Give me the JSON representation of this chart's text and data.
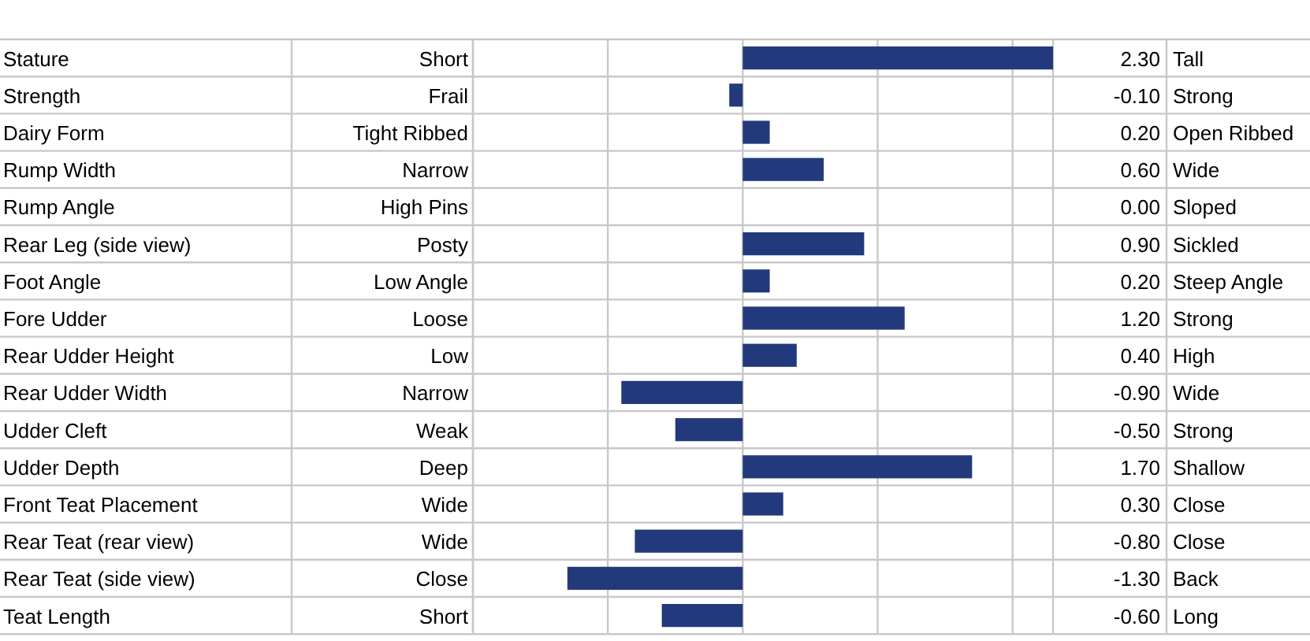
{
  "chart_data": {
    "type": "bar",
    "orientation": "horizontal",
    "categories": [
      "Stature",
      "Strength",
      "Dairy Form",
      "Rump Width",
      "Rump Angle",
      "Rear Leg (side view)",
      "Foot Angle",
      "Fore Udder",
      "Rear Udder Height",
      "Rear Udder Width",
      "Udder Cleft",
      "Udder Depth",
      "Front Teat Placement",
      "Rear Teat (rear view)",
      "Rear Teat (side view)",
      "Teat Length"
    ],
    "values": [
      2.3,
      -0.1,
      0.2,
      0.6,
      0.0,
      0.9,
      0.2,
      1.2,
      0.4,
      -0.9,
      -0.5,
      1.7,
      0.3,
      -0.8,
      -1.3,
      -0.6
    ],
    "value_labels": [
      "2.30",
      "-0.10",
      "0.20",
      "0.60",
      "0.00",
      "0.90",
      "0.20",
      "1.20",
      "0.40",
      "-0.90",
      "-0.50",
      "1.70",
      "0.30",
      "-0.80",
      "-1.30",
      "-0.60"
    ],
    "color": "#223a7c",
    "xlim": [
      -2,
      2.3
    ],
    "xticks": [
      {
        "value": -2,
        "label": null
      },
      {
        "value": -1,
        "label": null
      },
      {
        "value": 0,
        "label": null
      },
      {
        "value": 1,
        "label": null
      },
      {
        "value": 2,
        "label": null
      }
    ],
    "grid": "x",
    "annotations": [
      "Short",
      "Tall",
      "Frail",
      "Strong",
      "Tight Ribbed",
      "Open Ribbed",
      "Narrow",
      "Wide",
      "High Pins",
      "Sloped",
      "Posty",
      "Sickled",
      "Low Angle",
      "Steep Angle",
      "Loose",
      "Strong",
      "Low",
      "High",
      "Narrow",
      "Wide",
      "Weak",
      "Strong",
      "Deep",
      "Shallow",
      "Wide",
      "Close",
      "Wide",
      "Close",
      "Close",
      "Back",
      "Short",
      "Long"
    ]
  }
}
